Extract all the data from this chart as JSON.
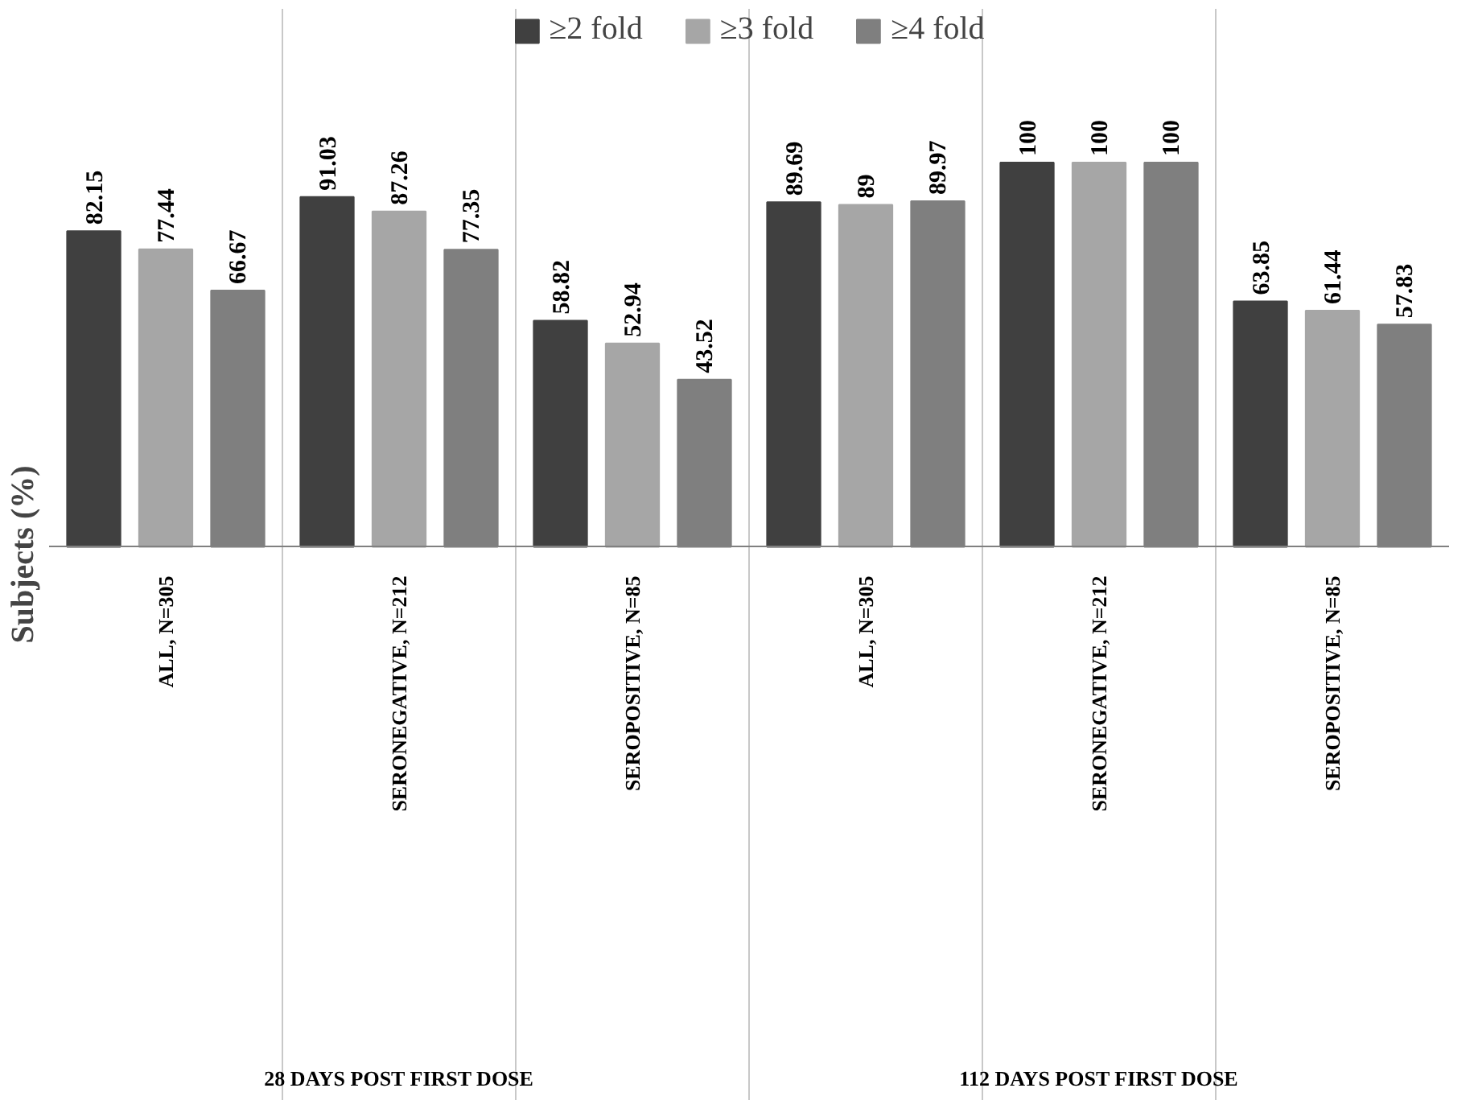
{
  "chart_data": {
    "type": "bar",
    "ylabel": "Subjects (%)",
    "categories": [
      "ALL, N=305",
      "SERONEGATIVE, N=212",
      "SEROPOSITIVE, N=85",
      "ALL, N=305",
      "SERONEGATIVE, N=212",
      "SEROPOSITIVE, N=85"
    ],
    "series": [
      {
        "name": "≥2 fold",
        "color": "#404040",
        "values": [
          82.15,
          91.03,
          58.82,
          89.69,
          100,
          63.85
        ]
      },
      {
        "name": "≥3 fold",
        "color": "#a6a6a6",
        "values": [
          77.44,
          87.26,
          52.94,
          89,
          100,
          61.44
        ]
      },
      {
        "name": "≥4 fold",
        "color": "#7f7f7f",
        "values": [
          66.67,
          77.35,
          43.52,
          89.97,
          100,
          57.83
        ]
      }
    ],
    "annotations": [
      "28 DAYS POST FIRST DOSE",
      "112 DAYS POST FIRST DOSE"
    ],
    "data_labels": true,
    "legend": "top",
    "grid": "x"
  }
}
